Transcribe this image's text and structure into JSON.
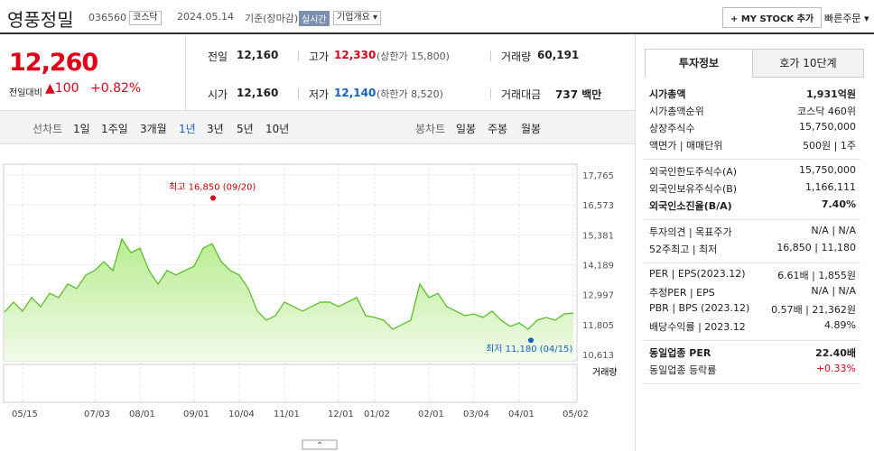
{
  "header": {
    "name": "영풍정밀",
    "code": "036560",
    "market": "코스닥",
    "date": "2024.05.14",
    "basis": "기준(장마감)",
    "realtime": "실시간",
    "overview": "기업개요",
    "mystock": "+ MY STOCK 추가",
    "quick": "빠른주문"
  },
  "price": {
    "current": "12,260",
    "change_label": "전일대비",
    "change": "100",
    "pct": "+0.82%"
  },
  "quotes": [
    [
      {
        "label": "전일",
        "value": "12,160"
      },
      {
        "label": "고가",
        "value": "12,330",
        "extra": "(상한가 15,800)"
      },
      {
        "label": "거래량",
        "value": "60,191"
      }
    ],
    [
      {
        "label": "시가",
        "value": "12,160"
      },
      {
        "label": "저가",
        "value": "12,140",
        "extra": "(하한가 8,520)"
      },
      {
        "label": "거래대금",
        "value": "737 백만"
      }
    ]
  ],
  "tabs": {
    "line_label": "선차트",
    "line": [
      "1일",
      "1주일",
      "3개월",
      "1년",
      "3년",
      "5년",
      "10년"
    ],
    "candle_label": "봉차트",
    "candle": [
      "일봉",
      "주봉",
      "월봉"
    ]
  },
  "chart_data": {
    "type": "line",
    "categories": [
      null,
      null,
      "05/15",
      null,
      null,
      null,
      null,
      null,
      null,
      null,
      "07/03",
      null,
      null,
      null,
      null,
      "08/01",
      null,
      null,
      null,
      null,
      null,
      "09/01",
      null,
      null,
      null,
      null,
      "10/04",
      null,
      null,
      null,
      null,
      "11/01",
      null,
      null,
      null,
      null,
      null,
      "12/01",
      null,
      null,
      null,
      "01/02",
      null,
      null,
      null,
      null,
      null,
      "02/01",
      null,
      null,
      null,
      null,
      "03/04",
      null,
      null,
      null,
      null,
      "04/01",
      null,
      null,
      null,
      null,
      null,
      "05/02"
    ],
    "series": [
      {
        "name": "영풍정밀",
        "color": "#5cbf2a",
        "values": [
          12300,
          12700,
          12340,
          12880,
          12520,
          13050,
          12880,
          13420,
          13240,
          13780,
          13960,
          14310,
          13960,
          15210,
          14670,
          14850,
          13960,
          13420,
          13960,
          13780,
          13960,
          14130,
          14850,
          15030,
          14310,
          13960,
          13780,
          13240,
          12340,
          11980,
          12160,
          12700,
          12520,
          12340,
          12520,
          12700,
          12700,
          12520,
          12700,
          12880,
          12160,
          12090,
          11980,
          11620,
          11800,
          11980,
          13420,
          12880,
          13050,
          12520,
          12340,
          12160,
          12230,
          12090,
          12340,
          11980,
          11730,
          11870,
          11620,
          11980,
          12090,
          11980,
          12230,
          12260
        ]
      }
    ],
    "ylim": [
      10613,
      17765
    ],
    "yticks": [
      {
        "value": 17765,
        "label": "17,765"
      },
      {
        "value": 16573,
        "label": "16,573"
      },
      {
        "value": 15381,
        "label": "15,381"
      },
      {
        "value": 14189,
        "label": "14,189"
      },
      {
        "value": 12997,
        "label": "12,997"
      },
      {
        "value": 11805,
        "label": "11,805"
      },
      {
        "value": 10613,
        "label": "10,613"
      }
    ],
    "annotations": [
      {
        "text": "최고 16,850 (09/20)",
        "value": 16850
      },
      {
        "text": "최저 11,180 (04/15)",
        "value": 11180
      }
    ],
    "volume_label": "거래량"
  },
  "side": {
    "tabs": [
      "투자정보",
      "호가 10단계"
    ],
    "groups": [
      [
        [
          "시가총액",
          "1,931억원"
        ],
        [
          "시가총액순위",
          "코스닥 460위"
        ],
        [
          "상장주식수",
          "15,750,000"
        ],
        [
          "액면가 | 매매단위",
          "500원 | 1주"
        ]
      ],
      [
        [
          "외국인한도주식수(A)",
          "15,750,000"
        ],
        [
          "외국인보유주식수(B)",
          "1,166,111"
        ],
        [
          "외국인소진율(B/A)",
          "7.40%"
        ]
      ],
      [
        [
          "투자의견 | 목표주가",
          "N/A | N/A"
        ],
        [
          "52주최고 | 최저",
          "16,850 | 11,180"
        ]
      ],
      [
        [
          "PER | EPS(2023.12)",
          "6.61배 | 1,855원"
        ],
        [
          "추정PER | EPS",
          "N/A | N/A"
        ],
        [
          "PBR | BPS (2023.12)",
          "0.57배 | 21,362원"
        ],
        [
          "배당수익률 | 2023.12",
          "4.89%"
        ]
      ],
      [
        [
          "동일업종 PER",
          "22.40배"
        ],
        [
          "동일업종 등락률",
          "+0.33%"
        ]
      ]
    ]
  }
}
